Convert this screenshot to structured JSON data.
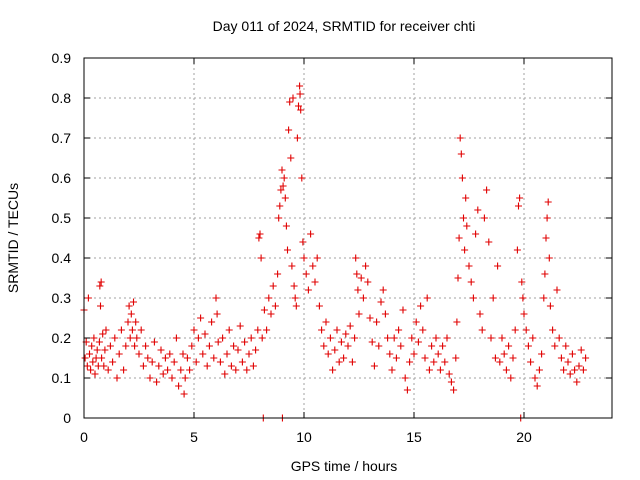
{
  "chart_data": {
    "type": "scatter",
    "title": "Day 011 of 2024, SRMTID for receiver chti",
    "xlabel": "GPS time / hours",
    "ylabel": "SRMTID / TECUs",
    "xlim": [
      0,
      24
    ],
    "ylim": [
      0,
      0.9
    ],
    "xticks": [
      0,
      5,
      10,
      15,
      20
    ],
    "xtick_labels": [
      "0",
      "5",
      "10",
      "15",
      "20"
    ],
    "yticks": [
      0,
      0.1,
      0.2,
      0.3,
      0.4,
      0.5,
      0.6,
      0.7,
      0.8,
      0.9
    ],
    "ytick_labels": [
      "0",
      "0.1",
      "0.2",
      "0.3",
      "0.4",
      "0.5",
      "0.6",
      "0.7",
      "0.8",
      "0.9"
    ],
    "grid": true,
    "marker": "+",
    "color": "#e00000",
    "series": [
      {
        "name": "SRMTID",
        "points": [
          [
            0.0,
            0.27
          ],
          [
            0.05,
            0.15
          ],
          [
            0.1,
            0.19
          ],
          [
            0.15,
            0.13
          ],
          [
            0.2,
            0.3
          ],
          [
            0.25,
            0.16
          ],
          [
            0.3,
            0.12
          ],
          [
            0.35,
            0.18
          ],
          [
            0.4,
            0.14
          ],
          [
            0.45,
            0.2
          ],
          [
            0.5,
            0.11
          ],
          [
            0.55,
            0.15
          ],
          [
            0.6,
            0.17
          ],
          [
            0.65,
            0.13
          ],
          [
            0.7,
            0.19
          ],
          [
            0.72,
            0.33
          ],
          [
            0.75,
            0.28
          ],
          [
            0.78,
            0.34
          ],
          [
            0.8,
            0.15
          ],
          [
            0.85,
            0.21
          ],
          [
            0.9,
            0.13
          ],
          [
            0.95,
            0.17
          ],
          [
            1.0,
            0.22
          ],
          [
            1.1,
            0.12
          ],
          [
            1.2,
            0.18
          ],
          [
            1.3,
            0.14
          ],
          [
            1.4,
            0.2
          ],
          [
            1.5,
            0.1
          ],
          [
            1.6,
            0.16
          ],
          [
            1.7,
            0.22
          ],
          [
            1.8,
            0.12
          ],
          [
            1.9,
            0.18
          ],
          [
            2.0,
            0.24
          ],
          [
            2.05,
            0.28
          ],
          [
            2.1,
            0.2
          ],
          [
            2.15,
            0.26
          ],
          [
            2.2,
            0.22
          ],
          [
            2.25,
            0.29
          ],
          [
            2.3,
            0.18
          ],
          [
            2.35,
            0.24
          ],
          [
            2.4,
            0.2
          ],
          [
            2.5,
            0.16
          ],
          [
            2.6,
            0.22
          ],
          [
            2.7,
            0.13
          ],
          [
            2.8,
            0.18
          ],
          [
            2.9,
            0.15
          ],
          [
            3.0,
            0.1
          ],
          [
            3.1,
            0.14
          ],
          [
            3.2,
            0.19
          ],
          [
            3.3,
            0.09
          ],
          [
            3.4,
            0.13
          ],
          [
            3.5,
            0.17
          ],
          [
            3.6,
            0.11
          ],
          [
            3.7,
            0.15
          ],
          [
            3.8,
            0.12
          ],
          [
            3.9,
            0.16
          ],
          [
            4.0,
            0.1
          ],
          [
            4.1,
            0.14
          ],
          [
            4.2,
            0.2
          ],
          [
            4.3,
            0.08
          ],
          [
            4.4,
            0.12
          ],
          [
            4.5,
            0.16
          ],
          [
            4.55,
            0.06
          ],
          [
            4.6,
            0.1
          ],
          [
            4.7,
            0.15
          ],
          [
            4.8,
            0.12
          ],
          [
            4.9,
            0.18
          ],
          [
            5.0,
            0.22
          ],
          [
            5.1,
            0.14
          ],
          [
            5.2,
            0.2
          ],
          [
            5.3,
            0.25
          ],
          [
            5.4,
            0.16
          ],
          [
            5.5,
            0.21
          ],
          [
            5.6,
            0.13
          ],
          [
            5.7,
            0.18
          ],
          [
            5.8,
            0.24
          ],
          [
            5.9,
            0.15
          ],
          [
            6.0,
            0.3
          ],
          [
            6.05,
            0.26
          ],
          [
            6.1,
            0.19
          ],
          [
            6.2,
            0.14
          ],
          [
            6.3,
            0.2
          ],
          [
            6.4,
            0.11
          ],
          [
            6.5,
            0.16
          ],
          [
            6.6,
            0.22
          ],
          [
            6.7,
            0.13
          ],
          [
            6.8,
            0.18
          ],
          [
            6.9,
            0.12
          ],
          [
            7.0,
            0.17
          ],
          [
            7.1,
            0.23
          ],
          [
            7.2,
            0.14
          ],
          [
            7.3,
            0.19
          ],
          [
            7.4,
            0.12
          ],
          [
            7.5,
            0.16
          ],
          [
            7.6,
            0.2
          ],
          [
            7.7,
            0.13
          ],
          [
            7.8,
            0.17
          ],
          [
            7.9,
            0.22
          ],
          [
            7.95,
            0.45
          ],
          [
            8.0,
            0.46
          ],
          [
            8.05,
            0.4
          ],
          [
            8.1,
            0.2
          ],
          [
            8.15,
            0.0
          ],
          [
            8.2,
            0.27
          ],
          [
            8.3,
            0.22
          ],
          [
            8.4,
            0.3
          ],
          [
            8.5,
            0.26
          ],
          [
            8.6,
            0.33
          ],
          [
            8.7,
            0.28
          ],
          [
            8.8,
            0.36
          ],
          [
            8.85,
            0.5
          ],
          [
            8.9,
            0.53
          ],
          [
            8.95,
            0.57
          ],
          [
            9.0,
            0.62
          ],
          [
            9.02,
            0.0
          ],
          [
            9.05,
            0.58
          ],
          [
            9.1,
            0.6
          ],
          [
            9.15,
            0.55
          ],
          [
            9.2,
            0.48
          ],
          [
            9.25,
            0.42
          ],
          [
            9.3,
            0.72
          ],
          [
            9.35,
            0.79
          ],
          [
            9.4,
            0.65
          ],
          [
            9.45,
            0.38
          ],
          [
            9.5,
            0.8
          ],
          [
            9.55,
            0.33
          ],
          [
            9.6,
            0.3
          ],
          [
            9.65,
            0.28
          ],
          [
            9.7,
            0.7
          ],
          [
            9.75,
            0.78
          ],
          [
            9.8,
            0.83
          ],
          [
            9.82,
            0.81
          ],
          [
            9.85,
            0.77
          ],
          [
            9.9,
            0.6
          ],
          [
            9.95,
            0.44
          ],
          [
            10.0,
            0.4
          ],
          [
            10.1,
            0.36
          ],
          [
            10.2,
            0.32
          ],
          [
            10.3,
            0.46
          ],
          [
            10.4,
            0.38
          ],
          [
            10.5,
            0.34
          ],
          [
            10.6,
            0.4
          ],
          [
            10.7,
            0.28
          ],
          [
            10.8,
            0.22
          ],
          [
            10.9,
            0.18
          ],
          [
            11.0,
            0.24
          ],
          [
            11.1,
            0.16
          ],
          [
            11.2,
            0.2
          ],
          [
            11.3,
            0.12
          ],
          [
            11.4,
            0.17
          ],
          [
            11.5,
            0.22
          ],
          [
            11.6,
            0.14
          ],
          [
            11.7,
            0.19
          ],
          [
            11.8,
            0.15
          ],
          [
            11.9,
            0.21
          ],
          [
            12.0,
            0.18
          ],
          [
            12.1,
            0.23
          ],
          [
            12.2,
            0.14
          ],
          [
            12.3,
            0.2
          ],
          [
            12.35,
            0.4
          ],
          [
            12.4,
            0.36
          ],
          [
            12.45,
            0.32
          ],
          [
            12.5,
            0.26
          ],
          [
            12.6,
            0.35
          ],
          [
            12.7,
            0.3
          ],
          [
            12.8,
            0.38
          ],
          [
            12.9,
            0.34
          ],
          [
            13.0,
            0.25
          ],
          [
            13.1,
            0.19
          ],
          [
            13.2,
            0.13
          ],
          [
            13.3,
            0.24
          ],
          [
            13.4,
            0.18
          ],
          [
            13.5,
            0.29
          ],
          [
            13.6,
            0.32
          ],
          [
            13.7,
            0.26
          ],
          [
            13.8,
            0.2
          ],
          [
            13.9,
            0.16
          ],
          [
            14.0,
            0.12
          ],
          [
            14.1,
            0.2
          ],
          [
            14.2,
            0.15
          ],
          [
            14.3,
            0.22
          ],
          [
            14.4,
            0.18
          ],
          [
            14.5,
            0.27
          ],
          [
            14.6,
            0.1
          ],
          [
            14.7,
            0.07
          ],
          [
            14.8,
            0.14
          ],
          [
            14.9,
            0.2
          ],
          [
            15.0,
            0.16
          ],
          [
            15.1,
            0.24
          ],
          [
            15.2,
            0.19
          ],
          [
            15.3,
            0.28
          ],
          [
            15.4,
            0.22
          ],
          [
            15.5,
            0.15
          ],
          [
            15.6,
            0.3
          ],
          [
            15.7,
            0.12
          ],
          [
            15.8,
            0.18
          ],
          [
            15.9,
            0.14
          ],
          [
            16.0,
            0.2
          ],
          [
            16.1,
            0.16
          ],
          [
            16.2,
            0.12
          ],
          [
            16.3,
            0.18
          ],
          [
            16.4,
            0.14
          ],
          [
            16.5,
            0.2
          ],
          [
            16.6,
            0.11
          ],
          [
            16.7,
            0.09
          ],
          [
            16.8,
            0.07
          ],
          [
            16.9,
            0.15
          ],
          [
            16.95,
            0.24
          ],
          [
            17.0,
            0.35
          ],
          [
            17.05,
            0.45
          ],
          [
            17.1,
            0.7
          ],
          [
            17.15,
            0.66
          ],
          [
            17.2,
            0.6
          ],
          [
            17.25,
            0.5
          ],
          [
            17.3,
            0.42
          ],
          [
            17.35,
            0.55
          ],
          [
            17.4,
            0.48
          ],
          [
            17.5,
            0.38
          ],
          [
            17.6,
            0.34
          ],
          [
            17.7,
            0.3
          ],
          [
            17.8,
            0.46
          ],
          [
            17.9,
            0.52
          ],
          [
            18.0,
            0.26
          ],
          [
            18.1,
            0.22
          ],
          [
            18.2,
            0.5
          ],
          [
            18.3,
            0.57
          ],
          [
            18.4,
            0.44
          ],
          [
            18.5,
            0.2
          ],
          [
            18.6,
            0.3
          ],
          [
            18.7,
            0.15
          ],
          [
            18.8,
            0.38
          ],
          [
            18.9,
            0.14
          ],
          [
            19.0,
            0.2
          ],
          [
            19.1,
            0.16
          ],
          [
            19.2,
            0.12
          ],
          [
            19.3,
            0.18
          ],
          [
            19.4,
            0.1
          ],
          [
            19.5,
            0.15
          ],
          [
            19.6,
            0.22
          ],
          [
            19.7,
            0.42
          ],
          [
            19.75,
            0.53
          ],
          [
            19.8,
            0.55
          ],
          [
            19.85,
            0.0
          ],
          [
            19.9,
            0.34
          ],
          [
            19.95,
            0.3
          ],
          [
            20.0,
            0.26
          ],
          [
            20.1,
            0.22
          ],
          [
            20.2,
            0.18
          ],
          [
            20.3,
            0.14
          ],
          [
            20.4,
            0.2
          ],
          [
            20.5,
            0.1
          ],
          [
            20.6,
            0.08
          ],
          [
            20.7,
            0.12
          ],
          [
            20.8,
            0.16
          ],
          [
            20.9,
            0.3
          ],
          [
            20.95,
            0.36
          ],
          [
            21.0,
            0.45
          ],
          [
            21.05,
            0.5
          ],
          [
            21.1,
            0.54
          ],
          [
            21.15,
            0.4
          ],
          [
            21.2,
            0.28
          ],
          [
            21.3,
            0.22
          ],
          [
            21.4,
            0.18
          ],
          [
            21.5,
            0.32
          ],
          [
            21.6,
            0.2
          ],
          [
            21.7,
            0.15
          ],
          [
            21.8,
            0.12
          ],
          [
            21.9,
            0.18
          ],
          [
            22.0,
            0.14
          ],
          [
            22.1,
            0.11
          ],
          [
            22.2,
            0.16
          ],
          [
            22.3,
            0.12
          ],
          [
            22.4,
            0.09
          ],
          [
            22.5,
            0.13
          ],
          [
            22.6,
            0.17
          ],
          [
            22.7,
            0.12
          ],
          [
            22.8,
            0.15
          ]
        ]
      }
    ]
  }
}
